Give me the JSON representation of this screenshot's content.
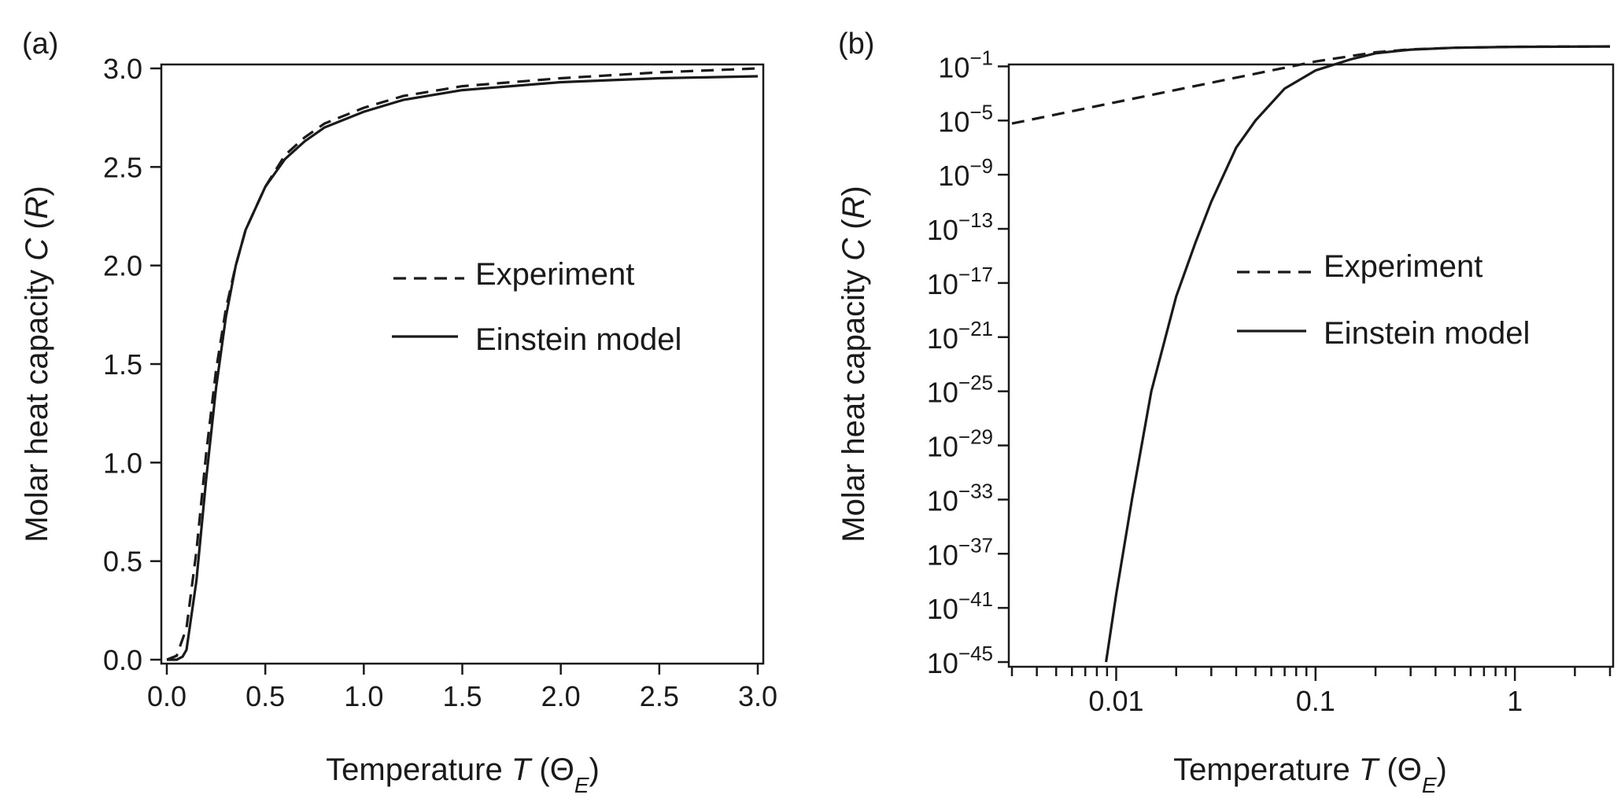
{
  "chart_data": [
    {
      "panel": "(a)",
      "type": "line",
      "xlabel": "Temperature T (ΘE)",
      "ylabel": "Molar heat capacity C (R)",
      "xlim": [
        0,
        3.0
      ],
      "ylim": [
        0,
        3.0
      ],
      "xticks": [
        "0.0",
        "0.5",
        "1.0",
        "1.5",
        "2.0",
        "2.5",
        "3.0"
      ],
      "yticks": [
        "0.0",
        "0.5",
        "1.0",
        "1.5",
        "2.0",
        "2.5",
        "3.0"
      ],
      "legend_position": "center-right",
      "series": [
        {
          "name": "Experiment",
          "style": "dashed",
          "x": [
            0.0,
            0.05,
            0.1,
            0.15,
            0.2,
            0.25,
            0.3,
            0.35,
            0.4,
            0.5,
            0.6,
            0.7,
            0.8,
            1.0,
            1.2,
            1.5,
            2.0,
            2.5,
            3.0
          ],
          "y": [
            0.0,
            0.02,
            0.16,
            0.55,
            1.05,
            1.47,
            1.78,
            2.0,
            2.18,
            2.4,
            2.56,
            2.65,
            2.72,
            2.8,
            2.86,
            2.91,
            2.95,
            2.98,
            3.0
          ]
        },
        {
          "name": "Einstein model",
          "style": "solid",
          "x": [
            0.0,
            0.05,
            0.08,
            0.1,
            0.15,
            0.2,
            0.25,
            0.3,
            0.35,
            0.4,
            0.5,
            0.6,
            0.7,
            0.8,
            1.0,
            1.2,
            1.5,
            2.0,
            2.5,
            3.0
          ],
          "y": [
            0.0,
            0.0,
            0.015,
            0.05,
            0.4,
            0.92,
            1.38,
            1.74,
            2.0,
            2.18,
            2.4,
            2.54,
            2.63,
            2.7,
            2.78,
            2.84,
            2.89,
            2.93,
            2.95,
            2.96
          ]
        }
      ]
    },
    {
      "panel": "(b)",
      "type": "line",
      "xlabel": "Temperature T (ΘE)",
      "ylabel": "Molar heat capacity C (R)",
      "xscale": "log",
      "yscale": "log",
      "xlim": [
        0.003,
        3.0
      ],
      "ylim": [
        1e-45,
        10
      ],
      "xticks": [
        "0.01",
        "0.1",
        "1"
      ],
      "yticks": [
        "10−1",
        "10−5",
        "10−9",
        "10−13",
        "10−17",
        "10−21",
        "10−25",
        "10−29",
        "10−33",
        "10−37",
        "10−41",
        "10−45"
      ],
      "ytick_base": "10",
      "ytick_exponents": [
        "−1",
        "−5",
        "−9",
        "−13",
        "−17",
        "−21",
        "−25",
        "−29",
        "−33",
        "−37",
        "−41",
        "−45"
      ],
      "legend_position": "center-right",
      "series": [
        {
          "name": "Experiment",
          "style": "dashed",
          "x": [
            0.003,
            0.01,
            0.03,
            0.1,
            0.2,
            0.3,
            0.5,
            1.0,
            3.0
          ],
          "y": [
            6e-06,
            0.00023,
            0.0062,
            0.23,
            1.1,
            1.8,
            2.4,
            2.8,
            3.0
          ]
        },
        {
          "name": "Einstein model",
          "style": "solid",
          "x": [
            0.0089,
            0.01,
            0.012,
            0.015,
            0.02,
            0.025,
            0.03,
            0.04,
            0.05,
            0.07,
            0.1,
            0.15,
            0.2,
            0.3,
            0.5,
            1.0,
            3.0
          ],
          "y": [
            1e-45,
            1e-40,
            1e-33,
            1e-25,
            1e-18,
            1e-14,
            1e-11,
            1e-07,
            1e-05,
            0.0023,
            0.05,
            0.33,
            0.92,
            1.74,
            2.4,
            2.78,
            2.96
          ]
        }
      ]
    }
  ]
}
